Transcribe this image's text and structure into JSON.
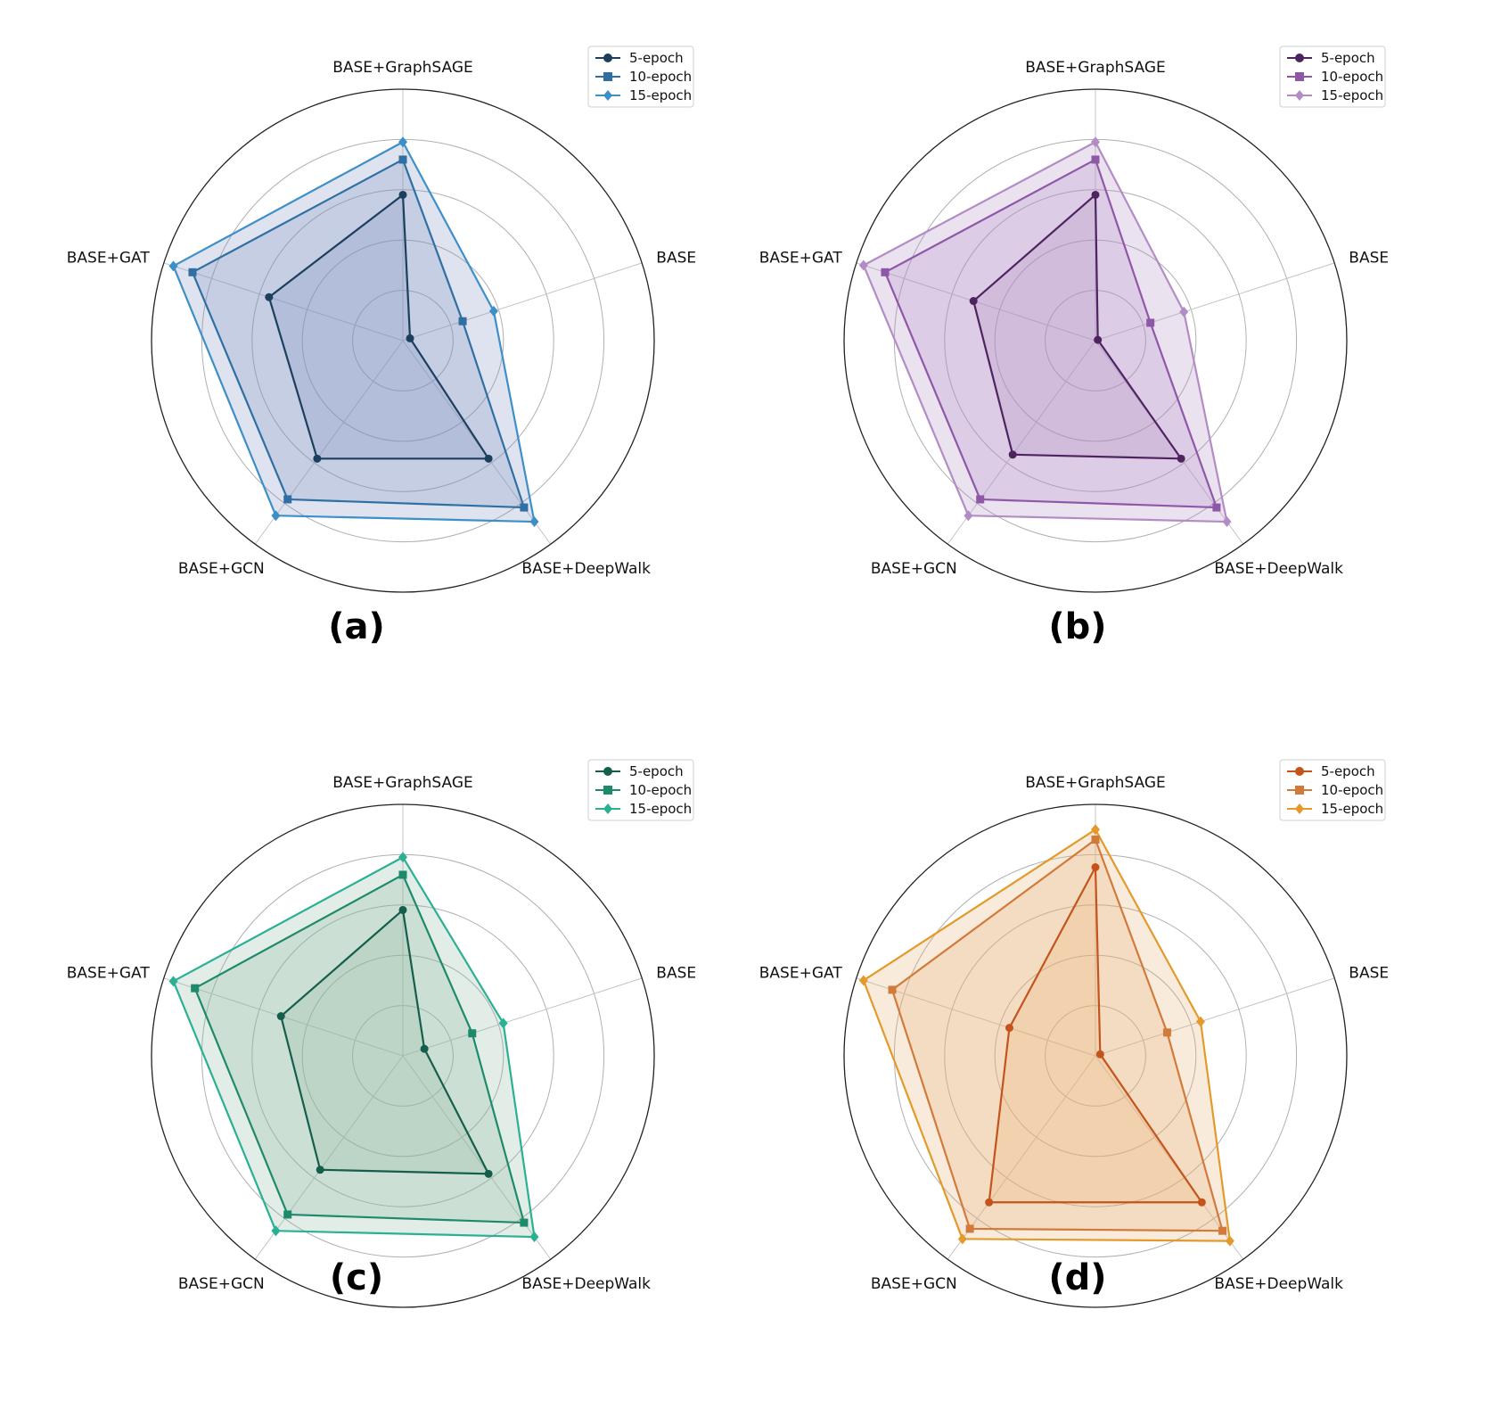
{
  "chart_data": [
    {
      "type": "radar",
      "caption": "(a)",
      "axes": [
        "BASE",
        "BASE+GraphSAGE",
        "BASE+GAT",
        "BASE+GCN",
        "BASE+DeepWalk"
      ],
      "rlim": [
        0,
        1
      ],
      "grid": true,
      "legend_position": "top-right",
      "colors": [
        "#1d3f5e",
        "#2f6fa3",
        "#3d8fc8"
      ],
      "fill": "#7d8fbf",
      "series": [
        {
          "name": "5-epoch",
          "marker": "circle",
          "values": [
            0.03,
            0.58,
            0.56,
            0.58,
            0.58
          ]
        },
        {
          "name": "10-epoch",
          "marker": "square",
          "values": [
            0.25,
            0.72,
            0.88,
            0.78,
            0.82
          ]
        },
        {
          "name": "15-epoch",
          "marker": "diamond",
          "values": [
            0.38,
            0.79,
            0.96,
            0.86,
            0.89
          ]
        }
      ]
    },
    {
      "type": "radar",
      "caption": "(b)",
      "axes": [
        "BASE",
        "BASE+GraphSAGE",
        "BASE+GAT",
        "BASE+GCN",
        "BASE+DeepWalk"
      ],
      "rlim": [
        0,
        1
      ],
      "grid": true,
      "legend_position": "top-right",
      "colors": [
        "#4e2460",
        "#8e57a8",
        "#b38cc6"
      ],
      "fill": "#b18cc4",
      "series": [
        {
          "name": "5-epoch",
          "marker": "circle",
          "values": [
            0.01,
            0.58,
            0.51,
            0.56,
            0.58
          ]
        },
        {
          "name": "10-epoch",
          "marker": "square",
          "values": [
            0.23,
            0.72,
            0.88,
            0.78,
            0.82
          ]
        },
        {
          "name": "15-epoch",
          "marker": "diamond",
          "values": [
            0.37,
            0.79,
            0.97,
            0.86,
            0.89
          ]
        }
      ]
    },
    {
      "type": "radar",
      "caption": "(c)",
      "axes": [
        "BASE",
        "BASE+GraphSAGE",
        "BASE+GAT",
        "BASE+GCN",
        "BASE+DeepWalk"
      ],
      "rlim": [
        0,
        1
      ],
      "grid": true,
      "legend_position": "top-right",
      "colors": [
        "#155e4c",
        "#1d8a6c",
        "#2ab093"
      ],
      "fill": "#8cb89f",
      "series": [
        {
          "name": "5-epoch",
          "marker": "circle",
          "values": [
            0.09,
            0.58,
            0.51,
            0.56,
            0.58
          ]
        },
        {
          "name": "10-epoch",
          "marker": "square",
          "values": [
            0.29,
            0.72,
            0.87,
            0.78,
            0.82
          ]
        },
        {
          "name": "15-epoch",
          "marker": "diamond",
          "values": [
            0.42,
            0.79,
            0.96,
            0.86,
            0.89
          ]
        }
      ]
    },
    {
      "type": "radar",
      "caption": "(d)",
      "axes": [
        "BASE",
        "BASE+GraphSAGE",
        "BASE+GAT",
        "BASE+GCN",
        "BASE+DeepWalk"
      ],
      "rlim": [
        0,
        1
      ],
      "grid": true,
      "legend_position": "top-right",
      "colors": [
        "#c4541c",
        "#d27a3a",
        "#e39a2a"
      ],
      "fill": "#e8b173",
      "series": [
        {
          "name": "5-epoch",
          "marker": "circle",
          "values": [
            0.02,
            0.75,
            0.36,
            0.72,
            0.72
          ]
        },
        {
          "name": "10-epoch",
          "marker": "square",
          "values": [
            0.3,
            0.86,
            0.85,
            0.85,
            0.86
          ]
        },
        {
          "name": "15-epoch",
          "marker": "diamond",
          "values": [
            0.44,
            0.9,
            0.97,
            0.9,
            0.91
          ]
        }
      ]
    }
  ]
}
